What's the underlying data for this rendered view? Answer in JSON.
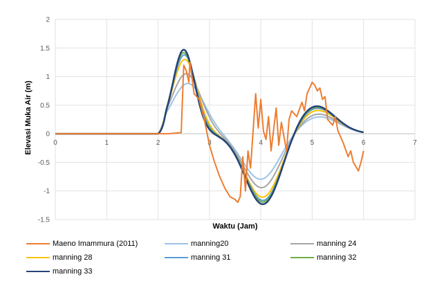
{
  "chart_data": {
    "type": "line",
    "xlabel": "Waktu (Jam)",
    "ylabel": "Elevasi Muka Air (m)",
    "xlim": [
      0,
      7
    ],
    "ylim": [
      -1.5,
      2
    ],
    "x_ticks": [
      0,
      1,
      2,
      3,
      4,
      5,
      6,
      7
    ],
    "y_ticks": [
      2,
      1.5,
      1,
      0.5,
      0,
      -0.5,
      -1,
      -1.5
    ],
    "grid": true,
    "legend_position": "bottom",
    "series": [
      {
        "name": "Maeno Imammura (2011)",
        "color": "#ED7D31",
        "points": [
          [
            0,
            0
          ],
          [
            2.2,
            0
          ],
          [
            2.45,
            0.02
          ],
          [
            2.5,
            1.2
          ],
          [
            2.55,
            1.1
          ],
          [
            2.6,
            0.9
          ],
          [
            2.62,
            1.25
          ],
          [
            2.65,
            1.05
          ],
          [
            2.7,
            0.7
          ],
          [
            2.8,
            0.6
          ],
          [
            2.9,
            0.25
          ],
          [
            3.0,
            -0.2
          ],
          [
            3.1,
            -0.5
          ],
          [
            3.2,
            -0.75
          ],
          [
            3.3,
            -0.95
          ],
          [
            3.4,
            -1.1
          ],
          [
            3.5,
            -1.15
          ],
          [
            3.55,
            -1.2
          ],
          [
            3.6,
            -1.1
          ],
          [
            3.65,
            -0.4
          ],
          [
            3.7,
            -1.0
          ],
          [
            3.75,
            -0.3
          ],
          [
            3.8,
            -0.6
          ],
          [
            3.85,
            0.05
          ],
          [
            3.9,
            0.7
          ],
          [
            3.95,
            0.1
          ],
          [
            4.0,
            0.6
          ],
          [
            4.05,
            0.05
          ],
          [
            4.1,
            -0.1
          ],
          [
            4.15,
            0.3
          ],
          [
            4.2,
            -0.3
          ],
          [
            4.3,
            0.45
          ],
          [
            4.35,
            -0.2
          ],
          [
            4.4,
            0.2
          ],
          [
            4.5,
            -0.3
          ],
          [
            4.55,
            0.25
          ],
          [
            4.6,
            0.4
          ],
          [
            4.7,
            0.3
          ],
          [
            4.8,
            0.55
          ],
          [
            4.85,
            0.4
          ],
          [
            4.9,
            0.7
          ],
          [
            5.0,
            0.9
          ],
          [
            5.05,
            0.85
          ],
          [
            5.1,
            0.75
          ],
          [
            5.15,
            0.8
          ],
          [
            5.2,
            0.6
          ],
          [
            5.25,
            0.65
          ],
          [
            5.3,
            0.25
          ],
          [
            5.4,
            0.15
          ],
          [
            5.45,
            0.3
          ],
          [
            5.5,
            0.05
          ],
          [
            5.6,
            -0.15
          ],
          [
            5.7,
            -0.4
          ],
          [
            5.75,
            -0.3
          ],
          [
            5.8,
            -0.5
          ],
          [
            5.9,
            -0.65
          ],
          [
            5.95,
            -0.5
          ],
          [
            6.0,
            -0.3
          ]
        ]
      },
      {
        "name": "manning20",
        "color": "#9DC3E6",
        "amp": 0.88,
        "tp": 2.58,
        "trough": -0.8,
        "tt": 4.0,
        "lp": 0.3
      },
      {
        "name": "manning 24",
        "color": "#A5A5A5",
        "amp": 1.05,
        "tp": 2.55,
        "trough": -0.95,
        "tt": 4.02,
        "lp": 0.35
      },
      {
        "name": "manning 28",
        "color": "#FFC000",
        "amp": 1.3,
        "tp": 2.52,
        "trough": -1.12,
        "tt": 4.04,
        "lp": 0.42
      },
      {
        "name": "manning 31",
        "color": "#5B9BD5",
        "amp": 1.38,
        "tp": 2.51,
        "trough": -1.18,
        "tt": 4.05,
        "lp": 0.46
      },
      {
        "name": "manning 32",
        "color": "#70AD47",
        "amp": 1.42,
        "tp": 2.5,
        "trough": -1.21,
        "tt": 4.05,
        "lp": 0.48
      },
      {
        "name": "manning 33",
        "color": "#264478",
        "amp": 1.47,
        "tp": 2.5,
        "trough": -1.25,
        "tt": 4.05,
        "lp": 0.5
      }
    ]
  }
}
